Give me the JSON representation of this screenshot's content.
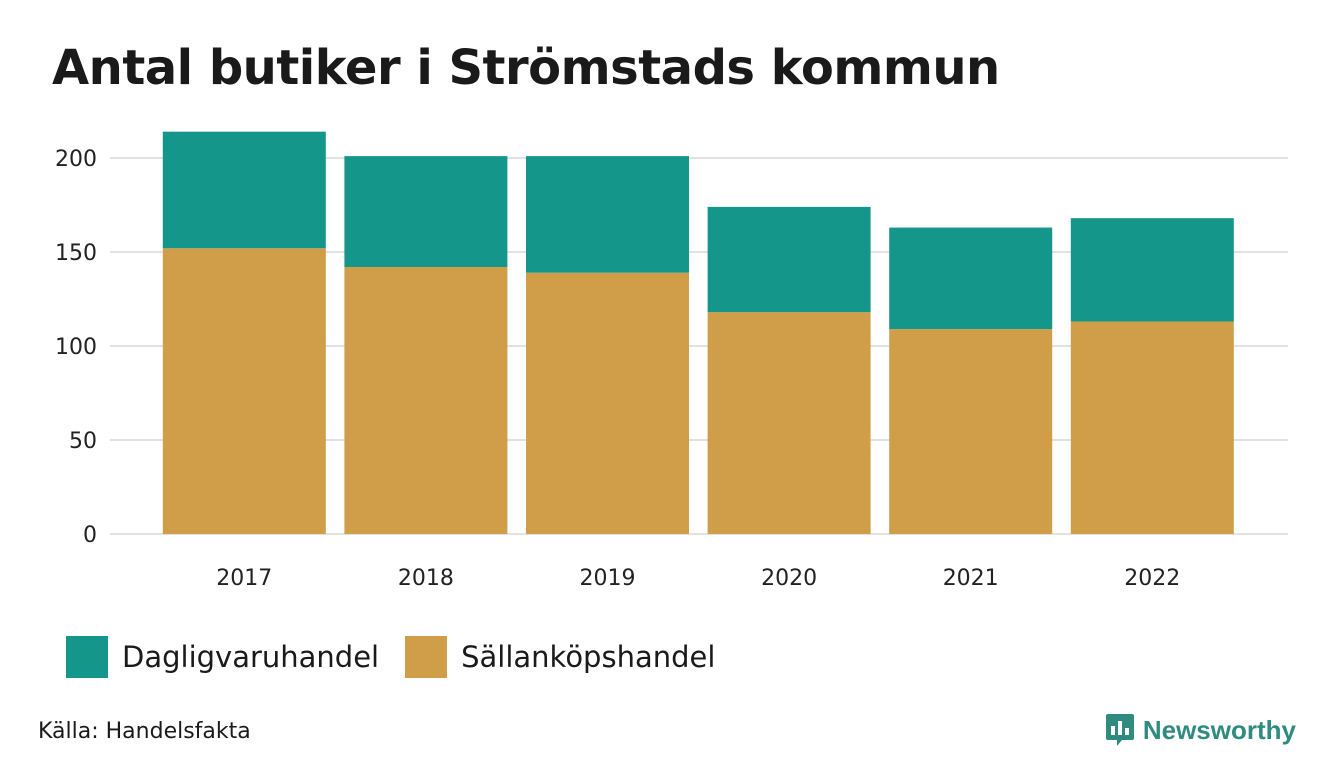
{
  "chart_data": {
    "type": "bar",
    "stacked": true,
    "title": "Antal butiker i Strömstads kommun",
    "categories": [
      "2017",
      "2018",
      "2019",
      "2020",
      "2021",
      "2022"
    ],
    "series": [
      {
        "name": "Sällanköpshandel",
        "color": "#d09e48",
        "values": [
          152,
          142,
          139,
          118,
          109,
          113
        ]
      },
      {
        "name": "Dagligvaruhandel",
        "color": "#15968a",
        "values": [
          62,
          59,
          62,
          56,
          54,
          55
        ]
      }
    ],
    "yticks": [
      0,
      50,
      100,
      150,
      200
    ],
    "ylim": [
      0,
      215
    ],
    "grid": true,
    "legend_position": "bottom-left",
    "source": "Källa: Handelsfakta",
    "brand": "Newsworthy"
  }
}
